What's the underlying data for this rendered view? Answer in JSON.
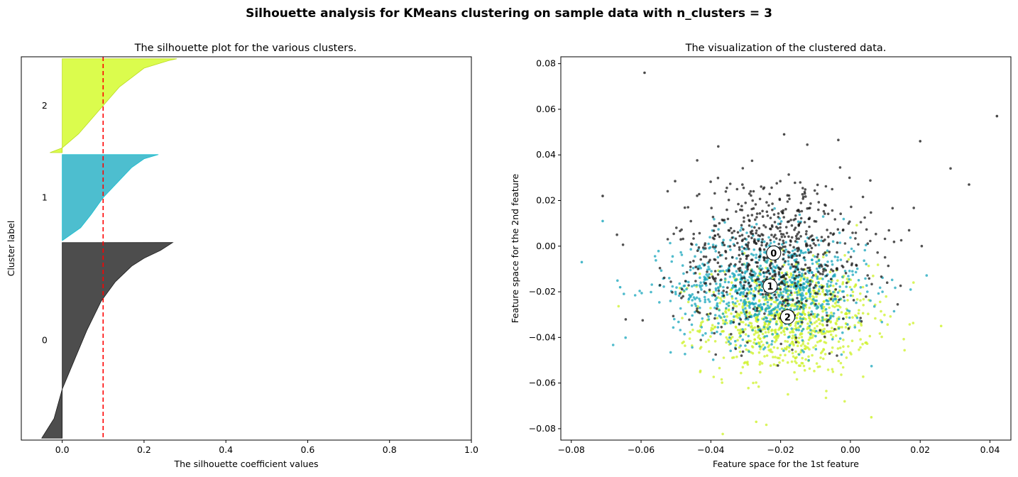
{
  "figure": {
    "suptitle": "Silhouette analysis for KMeans clustering on sample data with n_clusters = 3"
  },
  "chart_data": [
    {
      "type": "area",
      "subtype": "silhouette",
      "title": "The silhouette plot for the various clusters.",
      "xlabel": "The silhouette coefficient values",
      "ylabel": "Cluster label",
      "xlim": [
        -0.1,
        1.0
      ],
      "xticks": [
        "0.0",
        "0.2",
        "0.4",
        "0.6",
        "0.8",
        "1.0"
      ],
      "xtick_values": [
        0.0,
        0.2,
        0.4,
        0.6,
        0.8,
        1.0
      ],
      "average_silhouette": 0.1,
      "average_line_color": "#ff0000",
      "clusters": [
        {
          "label": "0",
          "color": "#4d4d4d",
          "edge": "#1a1a1a",
          "y_lower": 10,
          "y_upper": 1010,
          "min": -0.05,
          "max": 0.27,
          "profile_fraction": [
            0.0,
            0.04,
            0.08,
            0.12,
            0.2,
            0.3,
            0.45,
            0.6,
            0.75,
            0.9,
            1.0
          ],
          "profile_value": [
            0.27,
            0.24,
            0.2,
            0.17,
            0.13,
            0.095,
            0.06,
            0.03,
            0.0,
            -0.02,
            -0.05
          ]
        },
        {
          "label": "1",
          "color": "#4dbecf",
          "edge": "#17becf",
          "y_lower": 1020,
          "y_upper": 1460,
          "min": 0.0,
          "max": 0.235,
          "profile_fraction": [
            0.0,
            0.05,
            0.15,
            0.3,
            0.5,
            0.7,
            0.85,
            1.0
          ],
          "profile_value": [
            0.235,
            0.2,
            0.17,
            0.14,
            0.1,
            0.07,
            0.045,
            0.0
          ]
        },
        {
          "label": "2",
          "color": "#dbfc4d",
          "edge": "#bcdb22",
          "y_lower": 1470,
          "y_upper": 1950,
          "min": -0.03,
          "max": 0.28,
          "profile_fraction": [
            0.0,
            0.02,
            0.1,
            0.3,
            0.55,
            0.8,
            0.95,
            1.0
          ],
          "profile_value": [
            0.28,
            0.26,
            0.2,
            0.14,
            0.09,
            0.04,
            0.0,
            -0.03
          ]
        }
      ]
    },
    {
      "type": "scatter",
      "title": "The visualization of the clustered data.",
      "xlabel": "Feature space for the 1st feature",
      "ylabel": "Feature space for the 2nd feature",
      "xlim": [
        -0.083,
        0.046
      ],
      "ylim": [
        -0.085,
        0.083
      ],
      "xticks": [
        "−0.08",
        "−0.06",
        "−0.04",
        "−0.02",
        "0.00",
        "0.02",
        "0.04"
      ],
      "xtick_values": [
        -0.08,
        -0.06,
        -0.04,
        -0.02,
        0.0,
        0.02,
        0.04
      ],
      "yticks": [
        "−0.08",
        "−0.06",
        "−0.04",
        "−0.02",
        "0.00",
        "0.02",
        "0.04",
        "0.06",
        "0.08"
      ],
      "ytick_values": [
        -0.08,
        -0.06,
        -0.04,
        -0.02,
        0.0,
        0.02,
        0.04,
        0.06,
        0.08
      ],
      "series": [
        {
          "name": "cluster 0",
          "color": "#1a1a1a",
          "center_x": -0.022,
          "center_y": -0.003,
          "spread_x": 0.014,
          "spread_y": 0.017,
          "n": 700
        },
        {
          "name": "cluster 1",
          "color": "#17a5bc",
          "center_x": -0.023,
          "center_y": -0.018,
          "spread_x": 0.014,
          "spread_y": 0.012,
          "n": 900
        },
        {
          "name": "cluster 2",
          "color": "#cdf227",
          "center_x": -0.018,
          "center_y": -0.032,
          "spread_x": 0.012,
          "spread_y": 0.012,
          "n": 900
        }
      ],
      "outliers": [
        {
          "x": -0.059,
          "y": 0.076,
          "cluster": 0
        },
        {
          "x": 0.042,
          "y": 0.057,
          "cluster": 0
        },
        {
          "x": 0.02,
          "y": 0.046,
          "cluster": 0
        },
        {
          "x": -0.019,
          "y": 0.049,
          "cluster": 0
        },
        {
          "x": 0.034,
          "y": 0.027,
          "cluster": 0
        },
        {
          "x": -0.071,
          "y": 0.022,
          "cluster": 0
        },
        {
          "x": -0.077,
          "y": -0.007,
          "cluster": 1
        },
        {
          "x": -0.071,
          "y": 0.011,
          "cluster": 1
        },
        {
          "x": -0.066,
          "y": -0.018,
          "cluster": 1
        },
        {
          "x": 0.026,
          "y": -0.035,
          "cluster": 2
        },
        {
          "x": 0.006,
          "y": -0.075,
          "cluster": 2
        },
        {
          "x": -0.027,
          "y": -0.077,
          "cluster": 2
        }
      ],
      "centers": [
        {
          "label": "0",
          "x": -0.022,
          "y": -0.003
        },
        {
          "label": "1",
          "x": -0.023,
          "y": -0.0175
        },
        {
          "label": "2",
          "x": -0.018,
          "y": -0.031
        }
      ]
    }
  ]
}
